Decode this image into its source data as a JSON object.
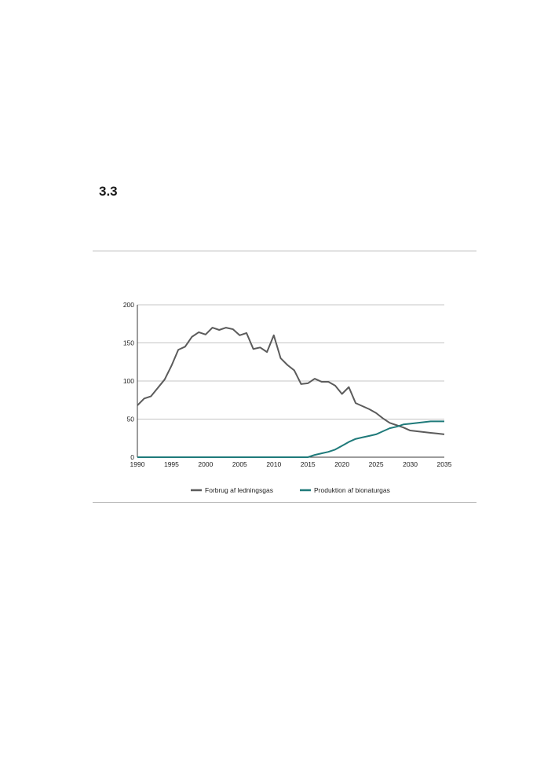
{
  "section": {
    "number": "3.3"
  },
  "colors": {
    "consumption": "#5b5b5b",
    "production": "#1f7a7a",
    "grid": "#b0b0b0",
    "axis": "#3a3a3a"
  },
  "chart_data": {
    "type": "line",
    "title": "",
    "xlabel": "",
    "ylabel": "",
    "xlim": [
      1990,
      2035
    ],
    "ylim": [
      0,
      200
    ],
    "x_ticks": [
      1990,
      1995,
      2000,
      2005,
      2010,
      2015,
      2020,
      2025,
      2030,
      2035
    ],
    "y_ticks": [
      0,
      50,
      100,
      150,
      200
    ],
    "grid": "horizontal",
    "legend_position": "bottom-center",
    "x": [
      1990,
      1991,
      1992,
      1993,
      1994,
      1995,
      1996,
      1997,
      1998,
      1999,
      2000,
      2001,
      2002,
      2003,
      2004,
      2005,
      2006,
      2007,
      2008,
      2009,
      2010,
      2011,
      2012,
      2013,
      2014,
      2015,
      2016,
      2017,
      2018,
      2019,
      2020,
      2021,
      2022,
      2023,
      2024,
      2025,
      2026,
      2027,
      2028,
      2029,
      2030,
      2031,
      2032,
      2033,
      2034,
      2035
    ],
    "series": [
      {
        "name": "Forbrug af ledningsgas",
        "color": "#5b5b5b",
        "values": [
          68,
          77,
          80,
          91,
          102,
          120,
          141,
          145,
          158,
          164,
          161,
          170,
          167,
          170,
          168,
          160,
          163,
          142,
          144,
          138,
          160,
          130,
          121,
          114,
          96,
          97,
          103,
          99,
          99,
          94,
          83,
          92,
          71,
          67,
          63,
          58,
          51,
          45,
          42,
          39,
          35,
          34,
          33,
          32,
          31,
          30
        ]
      },
      {
        "name": "Produktion af bionaturgas",
        "color": "#1f7a7a",
        "values": [
          0,
          0,
          0,
          0,
          0,
          0,
          0,
          0,
          0,
          0,
          0,
          0,
          0,
          0,
          0,
          0,
          0,
          0,
          0,
          0,
          0,
          0,
          0,
          0,
          0,
          0,
          3,
          5,
          7,
          10,
          15,
          20,
          24,
          26,
          28,
          30,
          34,
          38,
          40,
          43,
          44,
          45,
          46,
          47,
          47,
          47
        ]
      }
    ]
  }
}
